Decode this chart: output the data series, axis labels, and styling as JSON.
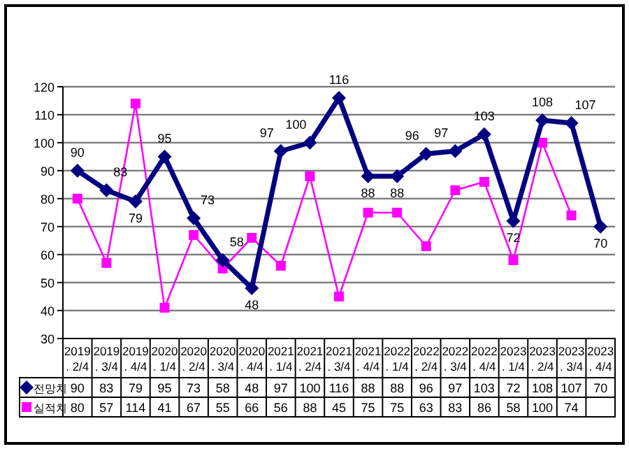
{
  "chart_data": {
    "type": "line",
    "categories": [
      "2019. 2/4",
      "2019. 3/4",
      "2019. 4/4",
      "2020. 1/4",
      "2020. 2/4",
      "2020. 3/4",
      "2020. 4/4",
      "2021. 1/4",
      "2021. 2/4",
      "2021. 3/4",
      "2021. 4/4",
      "2022. 1/4",
      "2022. 2/4",
      "2022. 3/4",
      "2022. 4/4",
      "2023. 1/4",
      "2023. 2/4",
      "2023. 3/4",
      "2023. 4/4"
    ],
    "series": [
      {
        "name": "전망치",
        "color": "#000080",
        "marker": "diamond",
        "values": [
          90,
          83,
          79,
          95,
          73,
          58,
          48,
          97,
          100,
          116,
          88,
          88,
          96,
          97,
          103,
          72,
          108,
          107,
          70
        ]
      },
      {
        "name": "실적치",
        "color": "#ff00ff",
        "marker": "square",
        "values": [
          80,
          57,
          114,
          41,
          67,
          55,
          66,
          56,
          88,
          45,
          75,
          75,
          63,
          83,
          86,
          58,
          100,
          74,
          null
        ]
      }
    ],
    "ylim": [
      30,
      120
    ],
    "yticks": [
      30,
      40,
      50,
      60,
      70,
      80,
      90,
      100,
      110,
      120
    ],
    "grid": "y",
    "data_labels": true,
    "legend": "bottom left",
    "annotations": [
      {
        "text": "90",
        "x": "2019. 2/4",
        "y": 90
      },
      {
        "text": "83",
        "x": "2019. 3/4",
        "y": 83
      },
      {
        "text": "79",
        "x": "2019. 4/4",
        "y": 79
      },
      {
        "text": "95",
        "x": "2020. 1/4",
        "y": 95
      },
      {
        "text": "73",
        "x": "2020. 2/4",
        "y": 73
      },
      {
        "text": "58",
        "x": "2020. 3/4",
        "y": 58
      },
      {
        "text": "48",
        "x": "2020. 4/4",
        "y": 48
      },
      {
        "text": "97",
        "x": "2021. 1/4",
        "y": 97
      },
      {
        "text": "100",
        "x": "2021. 2/4",
        "y": 100
      },
      {
        "text": "116",
        "x": "2021. 3/4",
        "y": 116
      },
      {
        "text": "88",
        "x": "2021. 4/4",
        "y": 88
      },
      {
        "text": "88",
        "x": "2022. 1/4",
        "y": 88
      },
      {
        "text": "96",
        "x": "2022. 2/4",
        "y": 96
      },
      {
        "text": "97",
        "x": "2022. 3/4",
        "y": 97
      },
      {
        "text": "103",
        "x": "2022. 4/4",
        "y": 103
      },
      {
        "text": "72",
        "x": "2023. 1/4",
        "y": 72
      },
      {
        "text": "108",
        "x": "2023. 2/4",
        "y": 108
      },
      {
        "text": "107",
        "x": "2023. 3/4",
        "y": 107
      },
      {
        "text": "70",
        "x": "2023. 4/4",
        "y": 70
      }
    ]
  }
}
